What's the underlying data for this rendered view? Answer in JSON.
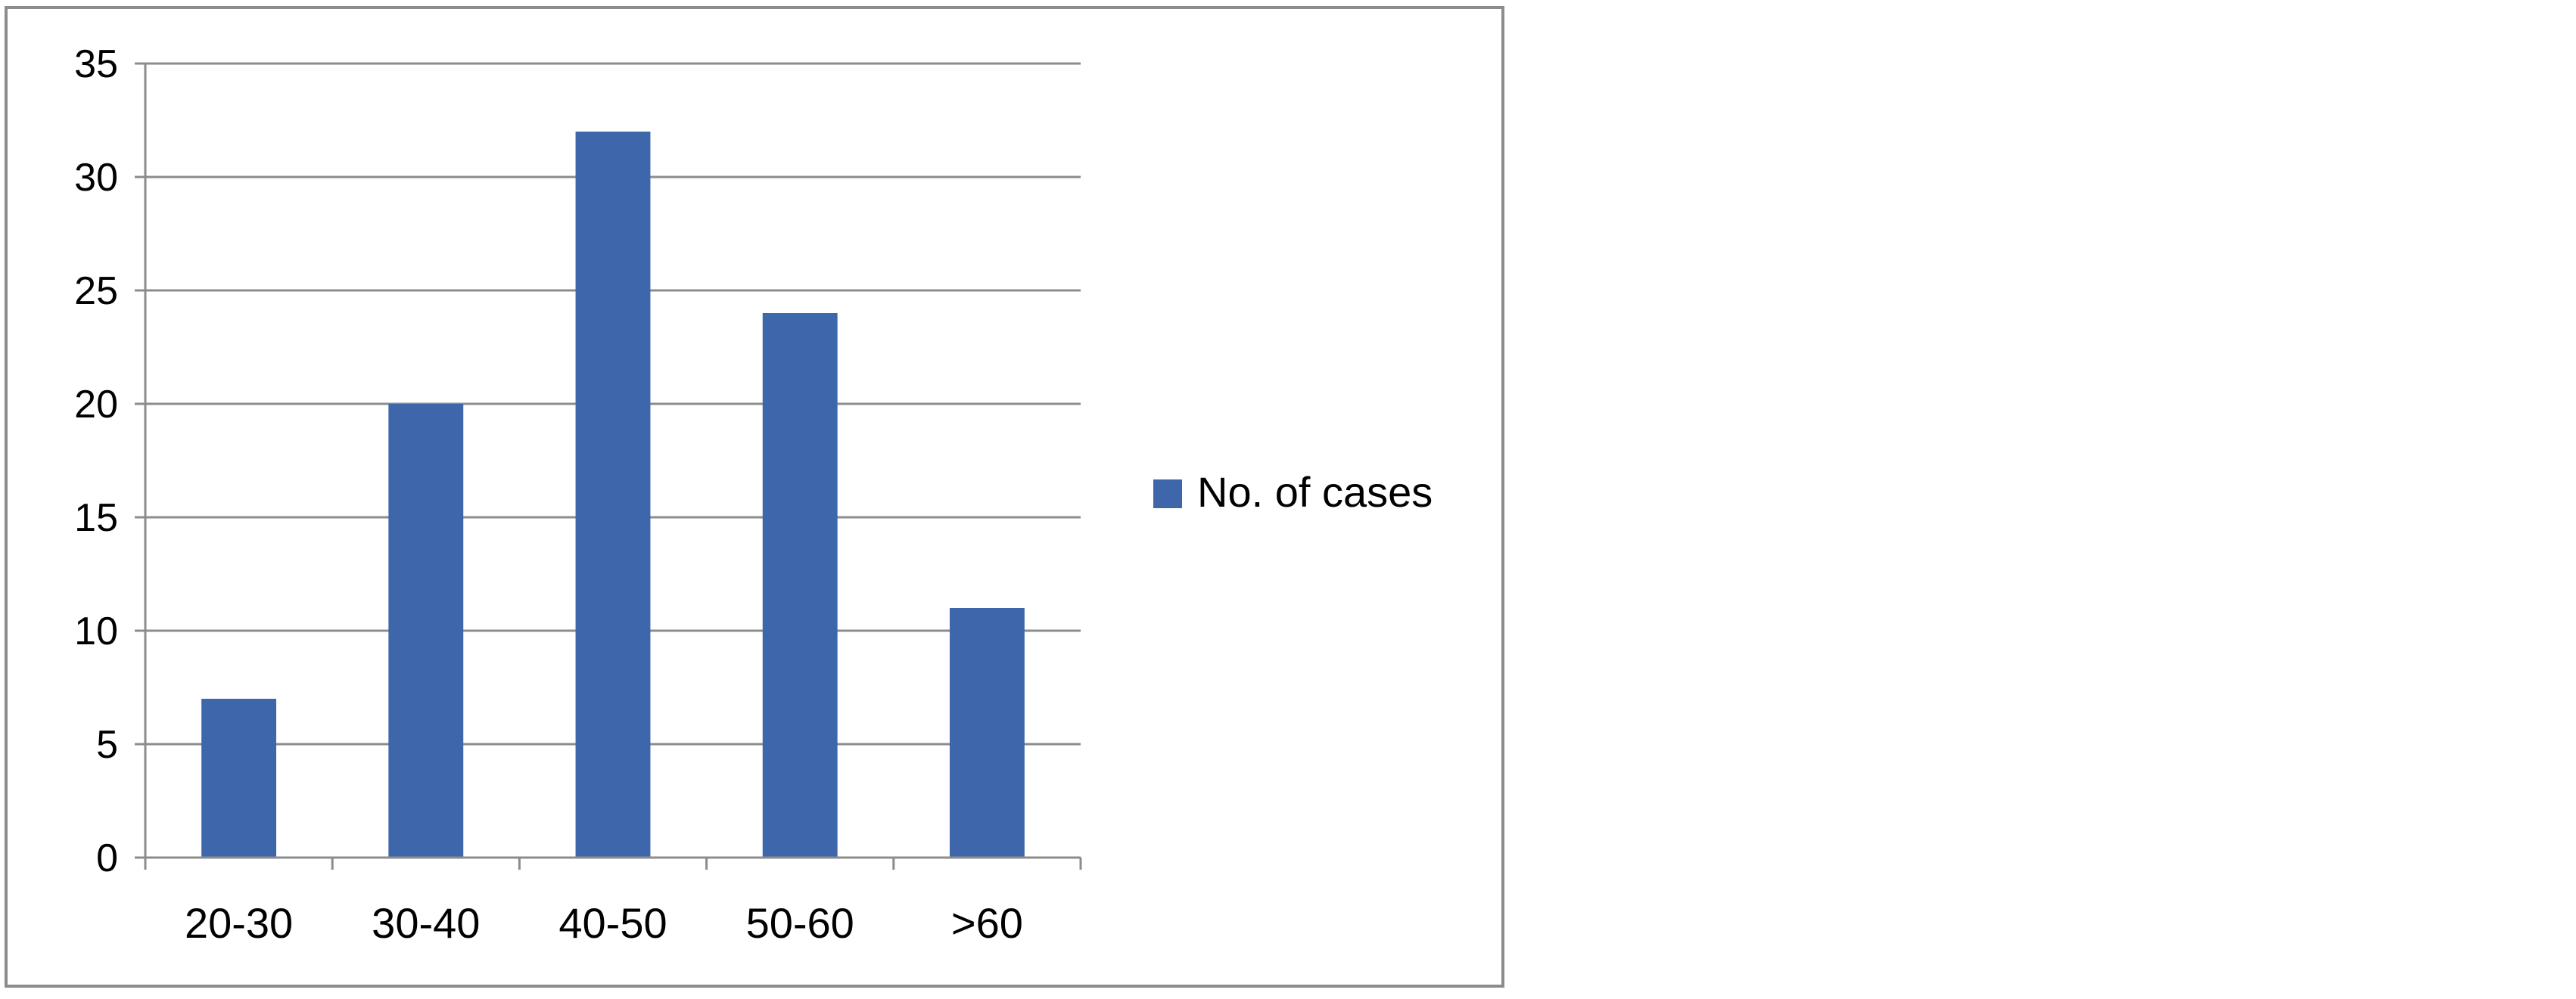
{
  "chart_data": {
    "type": "bar",
    "title": "",
    "xlabel": "",
    "ylabel": "",
    "categories": [
      "20-30",
      "30-40",
      "40-50",
      "50-60",
      ">60"
    ],
    "series": [
      {
        "name": "No. of cases",
        "values": [
          7,
          20,
          32,
          24,
          11
        ],
        "color": "#3d67aa"
      }
    ],
    "ylim": [
      0,
      35
    ],
    "yticks": [
      0,
      5,
      10,
      15,
      20,
      25,
      30,
      35
    ],
    "grid": true,
    "legend_position": "right"
  }
}
